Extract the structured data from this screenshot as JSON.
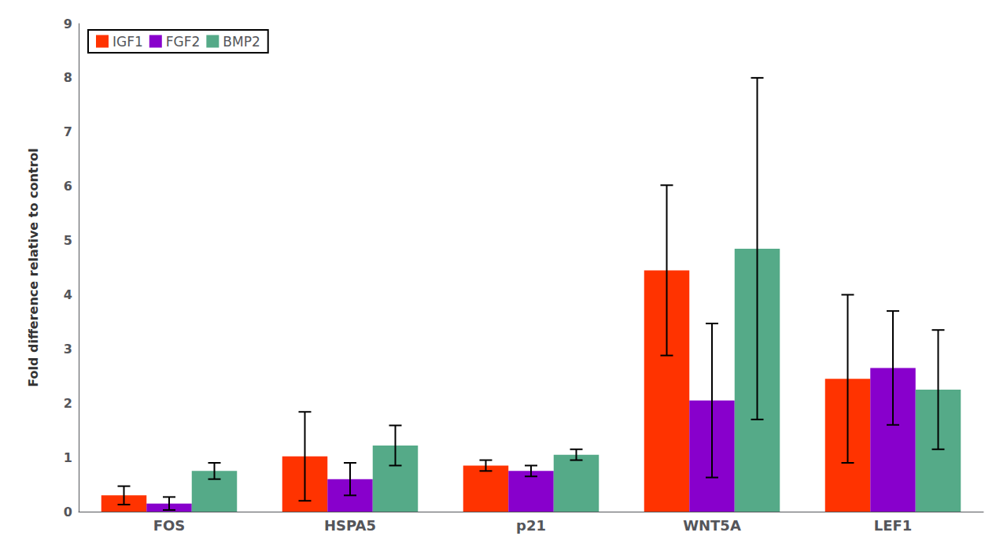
{
  "chart_data": {
    "type": "bar",
    "ylabel": "Fold difference relative to control",
    "categories": [
      "FOS",
      "HSPA5",
      "p21",
      "WNT5A",
      "LEF1"
    ],
    "series": [
      {
        "name": "IGF1",
        "color": "#FF3300",
        "values": [
          0.3,
          1.02,
          0.85,
          4.45,
          2.45
        ],
        "errors": [
          0.17,
          0.82,
          0.1,
          1.57,
          1.55
        ]
      },
      {
        "name": "FGF2",
        "color": "#8800CC",
        "values": [
          0.15,
          0.6,
          0.75,
          2.05,
          2.65
        ],
        "errors": [
          0.12,
          0.3,
          0.1,
          1.42,
          1.05
        ]
      },
      {
        "name": "BMP2",
        "color": "#55AA88",
        "values": [
          0.75,
          1.22,
          1.05,
          4.85,
          2.25
        ],
        "errors": [
          0.15,
          0.37,
          0.1,
          3.15,
          1.1
        ]
      }
    ],
    "ylim": [
      0,
      9
    ],
    "yticks": [
      0,
      1,
      2,
      3,
      4,
      5,
      6,
      7,
      8,
      9
    ],
    "grid": false,
    "legend": "upper left"
  }
}
